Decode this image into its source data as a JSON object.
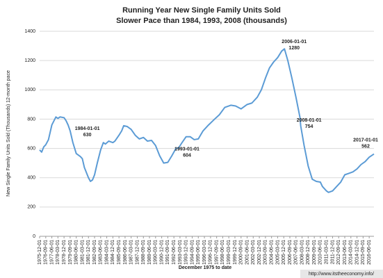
{
  "chart_data": {
    "type": "line",
    "title": "Running Year New Single Family Units Sold",
    "subtitle": "Slower Pace than 1984, 1993, 2008 (thousands)",
    "ylabel": "New Single Family Units Sold (Thousands) 12-month pace",
    "xlabel": "December 1975 to date",
    "source": "http://www.itstheeconomy.info/",
    "x": [
      "1975-12-01",
      "1976-03-01",
      "1976-06-01",
      "1976-09-01",
      "1977-01-01",
      "1977-06-01",
      "1977-12-01",
      "1978-03-01",
      "1978-06-01",
      "1978-12-01",
      "1979-03-01",
      "1979-06-01",
      "1979-09-01",
      "1980-01-01",
      "1980-06-01",
      "1980-12-01",
      "1981-03-01",
      "1981-06-01",
      "1981-12-01",
      "1982-03-01",
      "1982-06-01",
      "1982-09-01",
      "1983-01-01",
      "1983-06-01",
      "1983-10-01",
      "1984-01-01",
      "1984-06-01",
      "1984-12-01",
      "1985-03-01",
      "1985-09-01",
      "1986-01-01",
      "1986-04-01",
      "1986-09-01",
      "1987-03-01",
      "1987-09-01",
      "1988-03-01",
      "1988-09-01",
      "1989-03-01",
      "1989-09-01",
      "1990-03-01",
      "1990-09-01",
      "1991-03-01",
      "1991-09-01",
      "1992-03-01",
      "1992-09-01",
      "1993-01-01",
      "1993-06-01",
      "1993-12-01",
      "1994-06-01",
      "1994-12-01",
      "1995-06-01",
      "1996-01-01",
      "1996-09-01",
      "1997-06-01",
      "1998-01-01",
      "1998-09-01",
      "1999-06-01",
      "2000-01-01",
      "2000-09-01",
      "2001-06-01",
      "2002-01-01",
      "2002-09-01",
      "2003-03-01",
      "2003-09-01",
      "2004-03-01",
      "2004-09-01",
      "2005-03-01",
      "2005-09-01",
      "2006-01-01",
      "2006-06-01",
      "2006-12-01",
      "2007-06-01",
      "2007-12-01",
      "2008-01-01",
      "2008-06-01",
      "2008-12-01",
      "2009-06-01",
      "2009-12-01",
      "2010-06-01",
      "2010-09-01",
      "2011-03-01",
      "2011-06-01",
      "2011-12-01",
      "2012-06-01",
      "2012-12-01",
      "2013-06-01",
      "2013-12-01",
      "2014-06-01",
      "2014-12-01",
      "2015-06-01",
      "2015-12-01",
      "2016-06-01",
      "2017-01-01"
    ],
    "series": [
      {
        "name": "New Single Family Units Sold",
        "color": "#5b9bd5",
        "values": [
          590,
          575,
          610,
          625,
          660,
          760,
          815,
          805,
          815,
          810,
          790,
          760,
          720,
          640,
          565,
          545,
          530,
          470,
          400,
          375,
          385,
          420,
          500,
          590,
          640,
          630,
          650,
          640,
          650,
          690,
          720,
          755,
          750,
          730,
          690,
          665,
          675,
          650,
          655,
          620,
          550,
          500,
          505,
          550,
          600,
          604,
          640,
          680,
          680,
          660,
          665,
          720,
          760,
          800,
          830,
          880,
          895,
          890,
          870,
          900,
          910,
          950,
          1000,
          1080,
          1150,
          1190,
          1220,
          1265,
          1280,
          1200,
          1080,
          950,
          810,
          754,
          620,
          480,
          390,
          375,
          370,
          340,
          310,
          300,
          310,
          340,
          370,
          420,
          430,
          440,
          460,
          490,
          510,
          540,
          562
        ]
      }
    ],
    "annotations": [
      {
        "x": "1984-01-01",
        "value": 630
      },
      {
        "x": "1993-01-01",
        "value": 604
      },
      {
        "x": "2006-01-01",
        "value": 1280
      },
      {
        "x": "2008-01-01",
        "value": 754
      },
      {
        "x": "2017-01-01",
        "value": 562
      }
    ],
    "xlim": [
      "1975-12-01",
      "2017-01-01"
    ],
    "xticks": [
      "1975-12-01",
      "1976-09-01",
      "1977-06-01",
      "1978-03-01",
      "1978-12-01",
      "1979-09-01",
      "1980-06-01",
      "1981-03-01",
      "1981-12-01",
      "1982-09-01",
      "1983-06-01",
      "1984-03-01",
      "1984-12-01",
      "1985-09-01",
      "1986-06-01",
      "1987-03-01",
      "1987-12-01",
      "1988-09-01",
      "1989-06-01",
      "1990-03-01",
      "1990-12-01",
      "1991-09-01",
      "1992-06-01",
      "1993-03-01",
      "1993-12-01",
      "1994-09-01",
      "1995-06-01",
      "1996-03-01",
      "1996-12-01",
      "1997-09-01",
      "1998-06-01",
      "1999-03-01",
      "1999-12-01",
      "2000-09-01",
      "2001-06-01",
      "2002-03-01",
      "2002-12-01",
      "2003-09-01",
      "2004-06-01",
      "2005-03-01",
      "2005-12-01",
      "2006-09-01",
      "2007-06-01",
      "2008-03-01",
      "2008-12-01",
      "2009-09-01",
      "2010-06-01",
      "2011-03-01",
      "2011-12-01",
      "2012-09-01",
      "2013-06-01",
      "2014-03-01",
      "2014-12-01",
      "2015-09-01",
      "2016-06-01"
    ],
    "ylim": [
      0,
      1400
    ],
    "yticks": [
      0,
      200,
      400,
      600,
      800,
      1000,
      1200,
      1400
    ],
    "grid": true
  }
}
